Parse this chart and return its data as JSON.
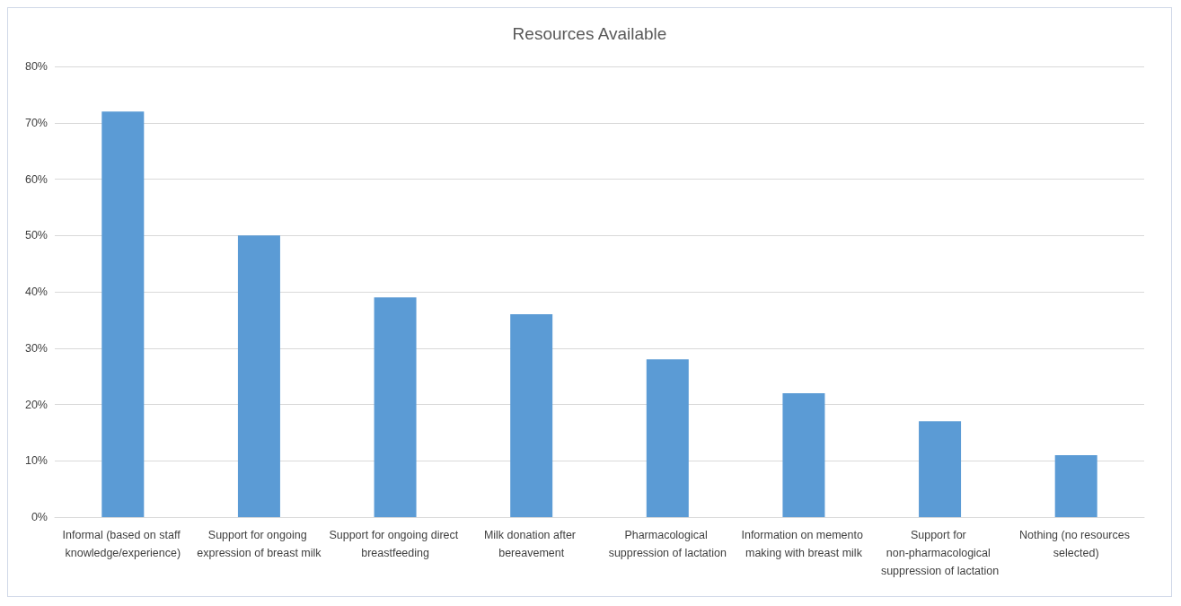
{
  "chart_data": {
    "type": "bar",
    "title": "Resources Available",
    "categories": [
      "Informal (based on staff knowledge/experience)",
      "Support for ongoing expression of breast milk",
      "Support for ongoing direct breastfeeding",
      "Milk donation after bereavement",
      "Pharmacological suppression of lactation",
      "Information on memento making with breast milk",
      "Support for non-pharmacological suppression of lactation",
      "Nothing (no resources selected)"
    ],
    "values": [
      72,
      50,
      39,
      36,
      28,
      22,
      17,
      11
    ],
    "color": "#5b9bd5",
    "ylim": [
      0,
      80
    ],
    "yticks": [
      {
        "value": 0,
        "label": "0%"
      },
      {
        "value": 10,
        "label": "10%"
      },
      {
        "value": 20,
        "label": "20%"
      },
      {
        "value": 30,
        "label": "30%"
      },
      {
        "value": 40,
        "label": "40%"
      },
      {
        "value": 50,
        "label": "50%"
      },
      {
        "value": 60,
        "label": "60%"
      },
      {
        "value": 70,
        "label": "70%"
      },
      {
        "value": 80,
        "label": "80%"
      }
    ],
    "grid": "y"
  }
}
